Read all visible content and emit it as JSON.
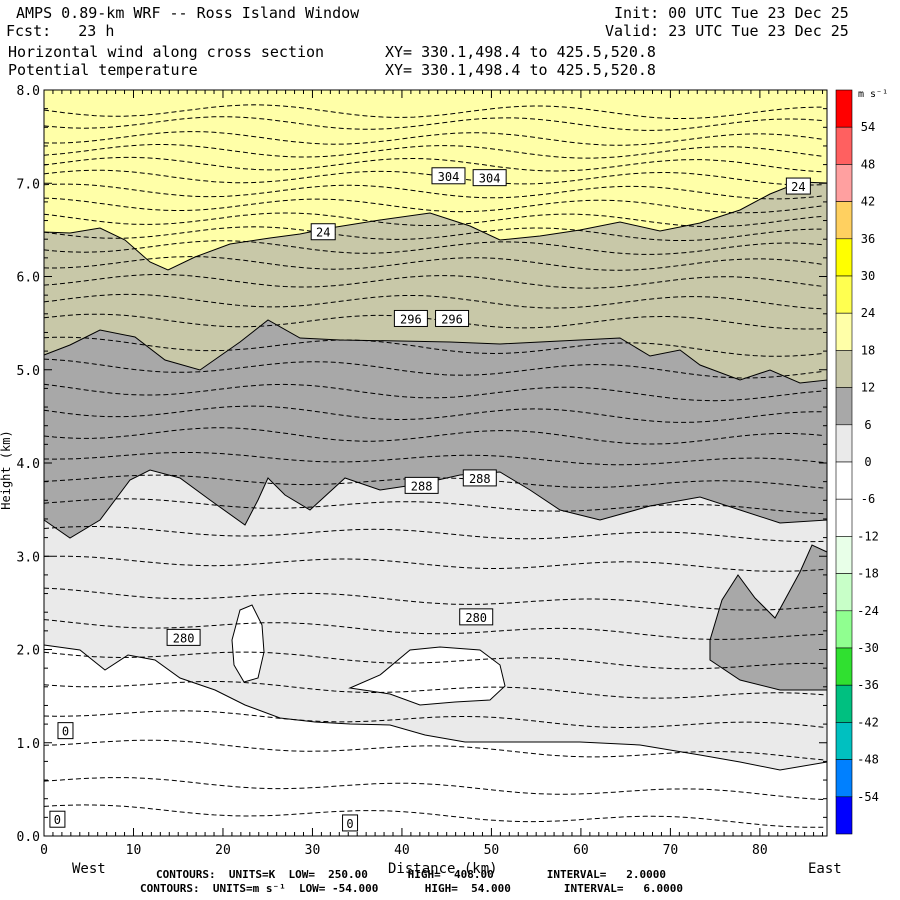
{
  "header": {
    "title": "AMPS 0.89-km WRF -- Ross Island Window",
    "fcst": "Fcst:   23 h",
    "init": "Init: 00 UTC Tue 23 Dec 25",
    "valid": "Valid: 23 UTC Tue 23 Dec 25",
    "field1": "Horizontal wind along cross section",
    "field2": "Potential temperature",
    "xy1": "XY= 330.1,498.4 to 425.5,520.8",
    "xy2": "XY= 330.1,498.4 to 425.5,520.8"
  },
  "footer": {
    "line1": "CONTOURS:  UNITS=K  LOW=  250.00      HIGH=  408.00        INTERVAL=   2.0000",
    "line2": "CONTOURS:  UNITS=m s⁻¹  LOW= -54.000       HIGH=  54.000        INTERVAL=   6.0000"
  },
  "chart_data": {
    "type": "cross-section contour",
    "x_ticks": [
      0,
      10,
      20,
      30,
      40,
      50,
      60,
      70,
      80
    ],
    "xlim": [
      0,
      87.5
    ],
    "x_edge_left": "West",
    "x_edge_right": "East",
    "xlabel": "Distance (km)",
    "ylabel": "Height (km)",
    "y_ticks": [
      "0.0",
      "1.0",
      "2.0",
      "3.0",
      "4.0",
      "5.0",
      "6.0",
      "7.0",
      "8.0"
    ],
    "ylim": [
      0,
      8
    ],
    "colorbar": {
      "unit": "m s⁻¹",
      "labels": [
        "54",
        "48",
        "42",
        "36",
        "30",
        "24",
        "18",
        "12",
        "6",
        "0",
        "-6",
        "-12",
        "-18",
        "-24",
        "-30",
        "-36",
        "-42",
        "-48",
        "-54"
      ],
      "colors": [
        "#ff0000",
        "#ff6060",
        "#ffa0a0",
        "#ffd060",
        "#ffff00",
        "#ffff50",
        "#ffffa8",
        "#c8c8a8",
        "#a8a8a8",
        "#eaeaea",
        "#ffffff",
        "#ffffff",
        "#e8ffe8",
        "#c8ffc8",
        "#90ff90",
        "#30e030",
        "#00c080",
        "#00c0c0",
        "#0080ff",
        "#0000ff"
      ]
    },
    "wind_bands": [
      {
        "range": "24 to 30",
        "color": "#ffffa8"
      },
      {
        "range": "18 to 24",
        "color": "#c8c8a8"
      },
      {
        "range": "12 to 18",
        "color": "#a8a8a8"
      },
      {
        "range": "6 to 12",
        "color": "#eaeaea"
      },
      {
        "range": "0 to 6",
        "color": "#ffffff"
      }
    ],
    "theta_labels": [
      {
        "text": "304",
        "x": 45.2,
        "y": 7.08
      },
      {
        "text": "304",
        "x": 49.8,
        "y": 7.06
      },
      {
        "text": "296",
        "x": 41.0,
        "y": 5.55
      },
      {
        "text": "296",
        "x": 45.6,
        "y": 5.55
      },
      {
        "text": "288",
        "x": 42.2,
        "y": 3.76
      },
      {
        "text": "288",
        "x": 48.7,
        "y": 3.84
      },
      {
        "text": "280",
        "x": 15.6,
        "y": 2.13
      },
      {
        "text": "280",
        "x": 48.3,
        "y": 2.35
      }
    ],
    "wind_labels": [
      {
        "text": "24",
        "x": 31.2,
        "y": 6.48
      },
      {
        "text": "24",
        "x": 84.3,
        "y": 6.97
      },
      {
        "text": "0",
        "x": 2.4,
        "y": 1.13
      },
      {
        "text": "0",
        "x": 1.5,
        "y": 0.18
      },
      {
        "text": "0",
        "x": 34.2,
        "y": 0.14
      }
    ]
  }
}
